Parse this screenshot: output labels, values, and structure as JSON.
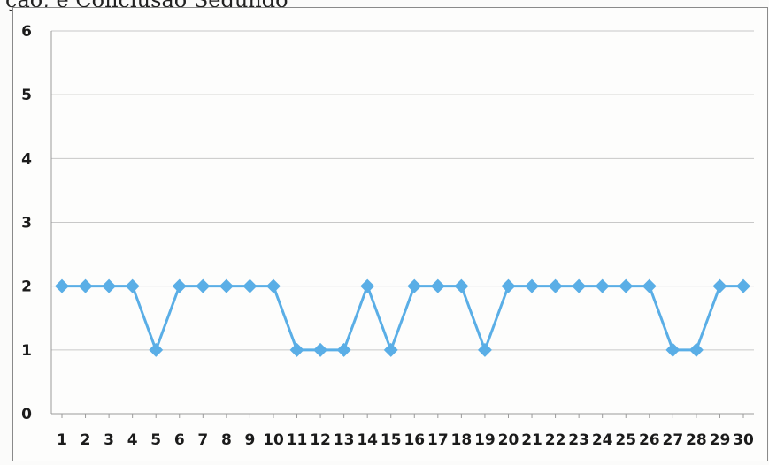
{
  "header_fragment": "ção, e Conclusão Segundo",
  "chart_data": {
    "type": "line",
    "title": "",
    "xlabel": "",
    "ylabel": "",
    "categories": [
      "1",
      "2",
      "3",
      "4",
      "5",
      "6",
      "7",
      "8",
      "9",
      "10",
      "11",
      "12",
      "13",
      "14",
      "15",
      "16",
      "17",
      "18",
      "19",
      "20",
      "21",
      "22",
      "23",
      "24",
      "25",
      "26",
      "27",
      "28",
      "29",
      "30"
    ],
    "series": [
      {
        "values": [
          2,
          2,
          2,
          2,
          1,
          2,
          2,
          2,
          2,
          2,
          1,
          1,
          1,
          2,
          1,
          2,
          2,
          2,
          1,
          2,
          2,
          2,
          2,
          2,
          2,
          2,
          1,
          1,
          2,
          2
        ],
        "color": "#5aaee6",
        "marker": "diamond"
      }
    ],
    "ylim": [
      0,
      6
    ],
    "yticks": [
      "0",
      "1",
      "2",
      "3",
      "4",
      "5",
      "6"
    ],
    "grid": true,
    "legend": "none"
  }
}
